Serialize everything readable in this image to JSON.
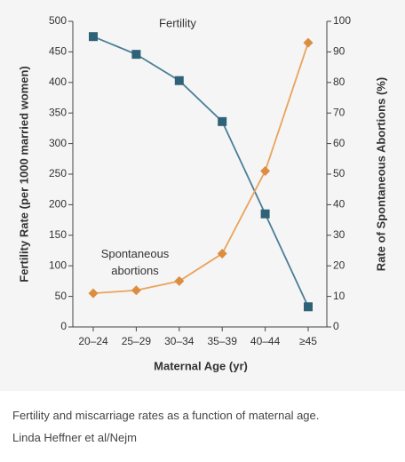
{
  "chart_data": {
    "type": "line",
    "x_label": "Maternal Age (yr)",
    "y_label": "Fertility Rate (per 1000 married women)",
    "y2_label": "Rate of Spontaneous Abortions (%)",
    "categories": [
      "20–24",
      "25–29",
      "30–34",
      "35–39",
      "40–44",
      "≥45"
    ],
    "series": [
      {
        "name": "Fertility",
        "color": "#4a7e98",
        "marker_color": "#2f6278",
        "marker": "square",
        "values": [
          475,
          446,
          403,
          336,
          185,
          33
        ]
      },
      {
        "name": "Spontaneous abortions",
        "color": "#eaa35c",
        "marker_color": "#dc8d3f",
        "marker": "diamond",
        "axis": "y2",
        "values": [
          11,
          12,
          15,
          24,
          51,
          93
        ]
      }
    ],
    "ylim": [
      0,
      500
    ],
    "yticks": [
      0,
      50,
      100,
      150,
      200,
      250,
      300,
      350,
      400,
      450,
      500
    ],
    "y2lim": [
      0,
      100
    ],
    "y2ticks": [
      0,
      10,
      20,
      30,
      40,
      50,
      60,
      70,
      80,
      90,
      100
    ],
    "grid": false
  },
  "caption": {
    "text": "Fertility and miscarriage rates as a function of maternal age.",
    "credit": "Linda Heffner et al/Nejm"
  }
}
